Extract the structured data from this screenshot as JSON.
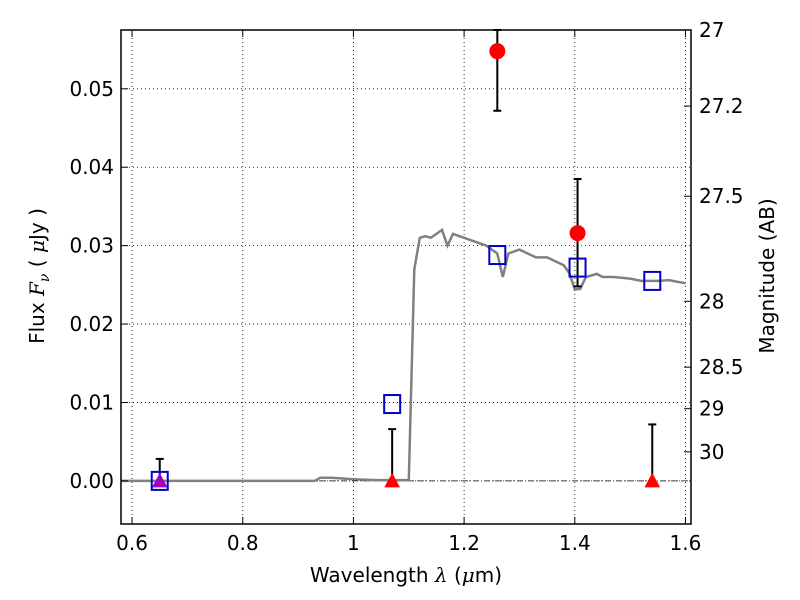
{
  "chart_data": {
    "type": "scatter",
    "xlabel_parts": [
      "Wavelength  ",
      "λ",
      " (",
      "μ",
      "m)"
    ],
    "ylabel_parts": [
      "Flux  ",
      "F",
      "ν",
      "  ( ",
      "μ",
      "Jy )"
    ],
    "y2label": "Magnitude (AB)",
    "xlim": [
      0.58,
      1.61
    ],
    "ylim": [
      -0.0055,
      0.0575
    ],
    "grid": true,
    "x_ticks": [
      0.6,
      0.8,
      1.0,
      1.2,
      1.4,
      1.6
    ],
    "x_tick_labels": [
      "0.6",
      "0.8",
      "1",
      "1.2",
      "1.4",
      "1.6"
    ],
    "y_ticks": [
      0.0,
      0.01,
      0.02,
      0.03,
      0.04,
      0.05
    ],
    "y_tick_labels": [
      "0.00",
      "0.01",
      "0.02",
      "0.03",
      "0.04",
      "0.05"
    ],
    "y2_ticks": [
      {
        "label": "27",
        "flux": 0.0575
      },
      {
        "label": "27.2",
        "flux": 0.0478
      },
      {
        "label": "27.5",
        "flux": 0.0363
      },
      {
        "label": "28",
        "flux": 0.0229
      },
      {
        "label": "28.5",
        "flux": 0.0145
      },
      {
        "label": "29",
        "flux": 0.0092
      },
      {
        "label": "30",
        "flux": 0.0037
      }
    ],
    "series": [
      {
        "type": "line",
        "color": "#808080",
        "points": [
          [
            0.58,
            0
          ],
          [
            0.93,
            0
          ],
          [
            0.94,
            0.0004
          ],
          [
            0.96,
            0.0004
          ],
          [
            1.0,
            0.0002
          ],
          [
            1.04,
            0.0001
          ],
          [
            1.1,
            0.0001
          ],
          [
            1.11,
            0.027
          ],
          [
            1.12,
            0.031
          ],
          [
            1.13,
            0.0312
          ],
          [
            1.14,
            0.031
          ],
          [
            1.16,
            0.032
          ],
          [
            1.17,
            0.03
          ],
          [
            1.18,
            0.0315
          ],
          [
            1.2,
            0.031
          ],
          [
            1.24,
            0.03
          ],
          [
            1.26,
            0.029
          ],
          [
            1.27,
            0.026
          ],
          [
            1.28,
            0.029
          ],
          [
            1.3,
            0.0295
          ],
          [
            1.33,
            0.0285
          ],
          [
            1.35,
            0.0285
          ],
          [
            1.38,
            0.0275
          ],
          [
            1.39,
            0.0265
          ],
          [
            1.4,
            0.0244
          ],
          [
            1.41,
            0.0245
          ],
          [
            1.42,
            0.026
          ],
          [
            1.44,
            0.0264
          ],
          [
            1.45,
            0.026
          ],
          [
            1.47,
            0.026
          ],
          [
            1.5,
            0.0258
          ],
          [
            1.52,
            0.0255
          ],
          [
            1.55,
            0.0255
          ],
          [
            1.57,
            0.0256
          ],
          [
            1.6,
            0.0252
          ]
        ]
      },
      {
        "type": "squares",
        "color": "#0000cc",
        "points": [
          [
            0.65,
            0.0
          ],
          [
            1.07,
            0.0098
          ],
          [
            1.26,
            0.0288
          ],
          [
            1.405,
            0.0272
          ],
          [
            1.54,
            0.0255
          ]
        ]
      },
      {
        "type": "circles",
        "color": "#ff0000",
        "points": [
          [
            1.26,
            0.0548,
            0.0472,
            0.0575
          ],
          [
            1.405,
            0.0316,
            0.0248,
            0.0385
          ]
        ]
      },
      {
        "type": "triangles",
        "color": "#ff0000",
        "points": [
          [
            0.65,
            0.0,
            0.0,
            0.0028
          ],
          [
            1.07,
            0.0,
            0.0,
            0.0066
          ],
          [
            1.54,
            0.0,
            0.0,
            0.0072
          ]
        ]
      }
    ],
    "zero_line": 0.0,
    "triangle_overlap_color": "#a000c0"
  }
}
